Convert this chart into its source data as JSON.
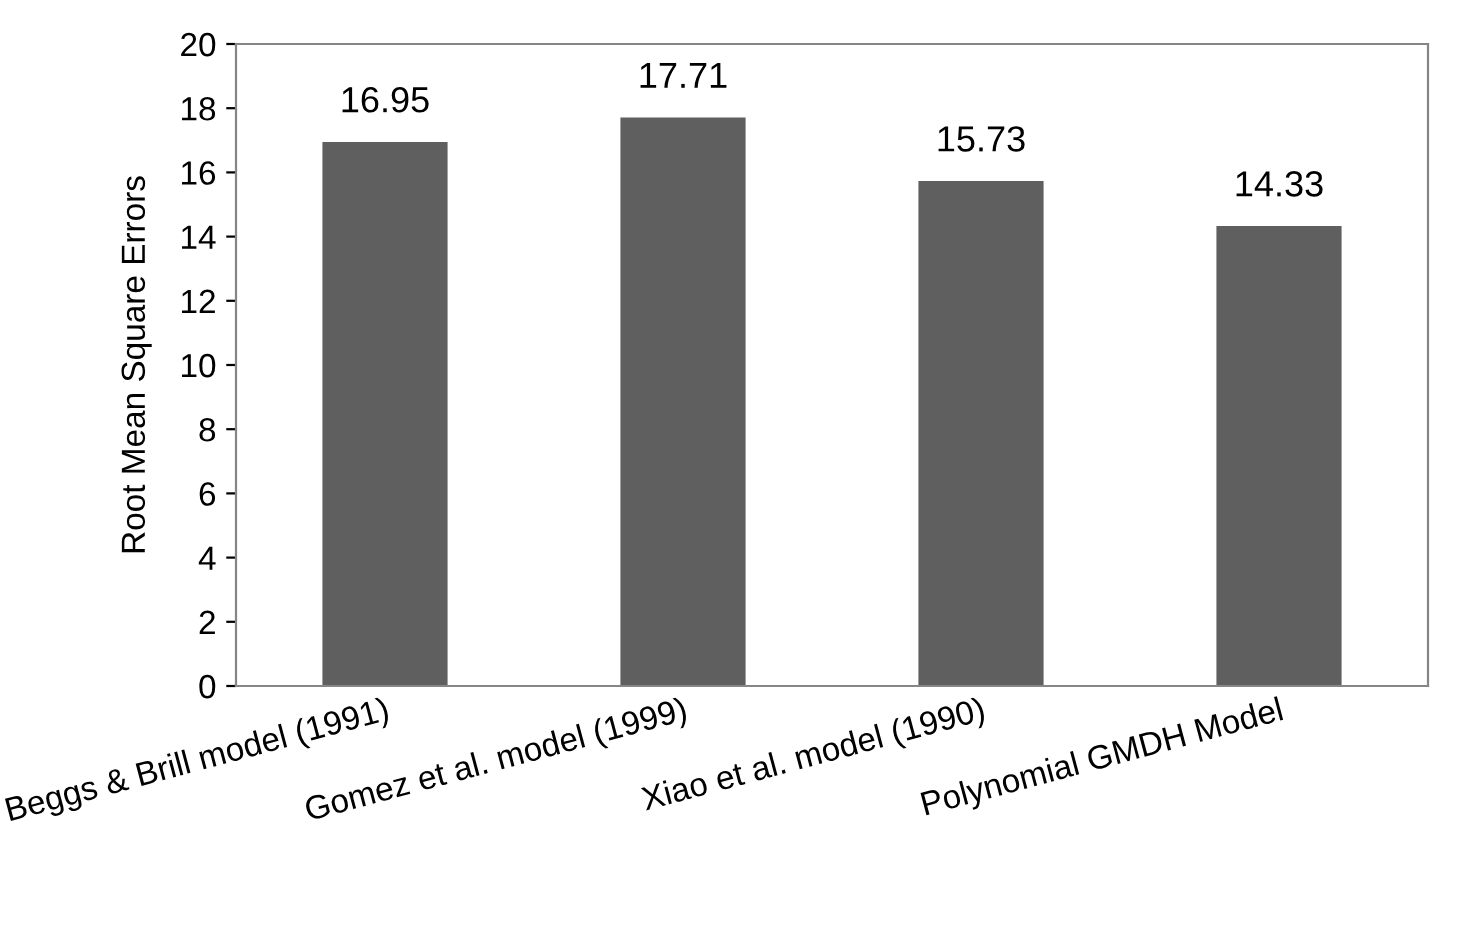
{
  "chart_data": {
    "type": "bar",
    "ylabel": "Root Mean Square Errors",
    "categories": [
      "Beggs & Brill model (1991)",
      "Gomez et al. model (1999)",
      "Xiao et al. model (1990)",
      "Polynomial GMDH Model"
    ],
    "values": [
      16.95,
      17.71,
      15.73,
      14.33
    ],
    "color": "#5f5f5f",
    "ylim": [
      0,
      20
    ],
    "yticks": [
      0,
      2,
      4,
      6,
      8,
      10,
      12,
      14,
      16,
      18,
      20
    ],
    "grid": false,
    "data_labels": true
  }
}
